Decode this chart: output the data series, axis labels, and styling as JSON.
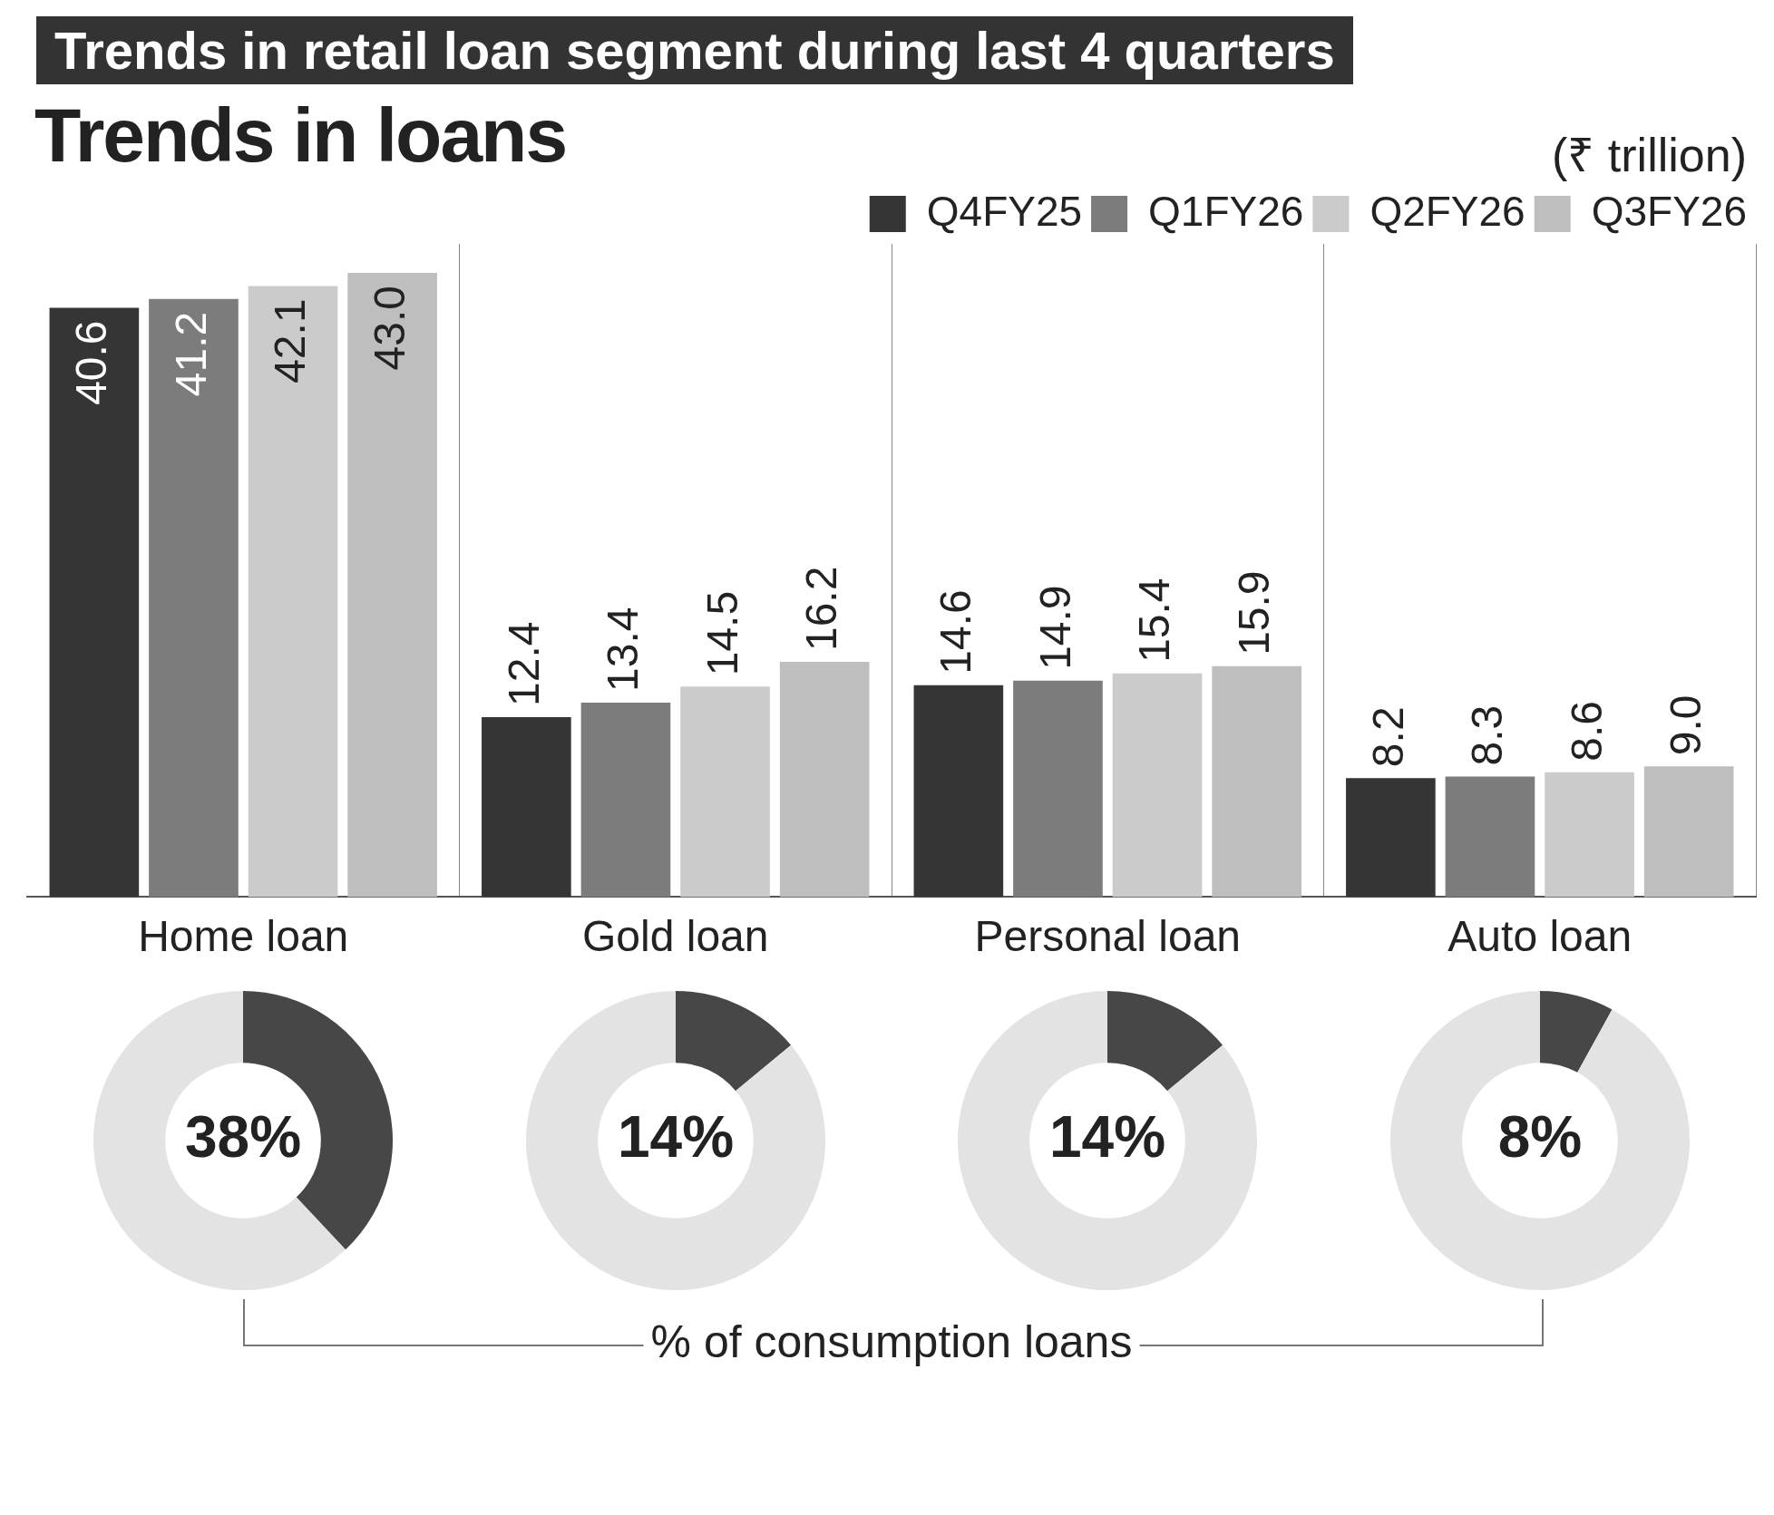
{
  "chart_data": [
    {
      "type": "bar",
      "title": "Trends in retail loan segment during last 4 quarters",
      "subtitle": "Trends in loans",
      "ylabel": "(₹ trillion)",
      "categories": [
        "Home loan",
        "Gold loan",
        "Personal loan",
        "Auto loan"
      ],
      "series": [
        {
          "name": "Q4FY25",
          "color": "#353535",
          "values": [
            40.6,
            12.4,
            14.6,
            8.2
          ],
          "value_labels": [
            "40.6",
            "12.4",
            "14.6",
            "8.2"
          ]
        },
        {
          "name": "Q1FY26",
          "color": "#7c7c7c",
          "values": [
            41.2,
            13.4,
            14.9,
            8.3
          ],
          "value_labels": [
            "41.2",
            "13.4",
            "14.9",
            "8.3"
          ]
        },
        {
          "name": "Q2FY26",
          "color": "#cbcbcb",
          "values": [
            42.1,
            14.5,
            15.4,
            8.6
          ],
          "value_labels": [
            "42.1",
            "14.5",
            "15.4",
            "8.6"
          ]
        },
        {
          "name": "Q3FY26",
          "color": "#bebebe",
          "values": [
            43.0,
            16.2,
            15.9,
            9.0
          ],
          "value_labels": [
            "43.0",
            "16.2",
            "15.9",
            "9.0"
          ]
        }
      ],
      "legend": "top right",
      "grid": "x",
      "tick_labels": "x",
      "annotations": [
        "% of consumption loans"
      ]
    },
    {
      "type": "donut",
      "categories": [
        null,
        null
      ],
      "values": [
        38,
        62
      ],
      "colors": [
        "#474747",
        "#e3e3e3"
      ],
      "value_labels": [
        "38%",
        null
      ],
      "legend": false
    },
    {
      "type": "donut",
      "categories": [
        null,
        null
      ],
      "values": [
        14,
        86
      ],
      "colors": [
        "#474747",
        "#e3e3e3"
      ],
      "value_labels": [
        "14%",
        null
      ],
      "legend": false
    },
    {
      "type": "donut",
      "categories": [
        null,
        null
      ],
      "values": [
        14,
        86
      ],
      "colors": [
        "#474747",
        "#e3e3e3"
      ],
      "value_labels": [
        "14%",
        null
      ],
      "legend": false
    },
    {
      "type": "donut",
      "categories": [
        null,
        null
      ],
      "values": [
        8,
        92
      ],
      "colors": [
        "#474747",
        "#e3e3e3"
      ],
      "value_labels": [
        "8%",
        null
      ],
      "legend": false
    }
  ]
}
